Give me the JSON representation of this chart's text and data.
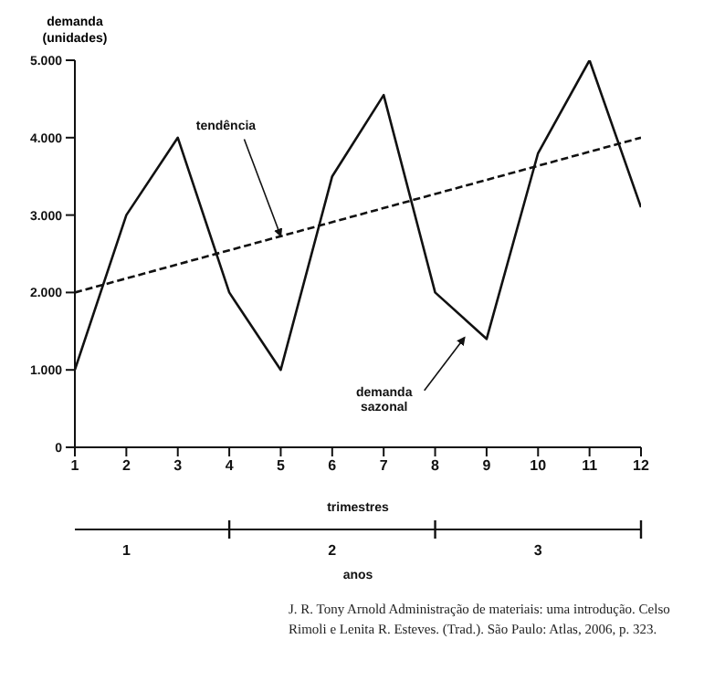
{
  "chart_data": {
    "type": "line",
    "ylabel": "demanda (unidades)",
    "xlabel": "trimestres",
    "x2label": "anos",
    "x": [
      1,
      2,
      3,
      4,
      5,
      6,
      7,
      8,
      9,
      10,
      11,
      12
    ],
    "series": [
      {
        "name": "demanda sazonal",
        "color": "#111111",
        "values": [
          1000,
          3000,
          4000,
          2000,
          1000,
          3500,
          4550,
          2000,
          1400,
          3800,
          5000,
          3100
        ],
        "line_style": "solid"
      },
      {
        "color": "#111111",
        "x": [
          1,
          12
        ],
        "values": [
          2000,
          4000
        ],
        "line_style": "dashed"
      }
    ],
    "xlim": [
      1,
      12
    ],
    "xticks": [
      1,
      2,
      3,
      4,
      5,
      6,
      7,
      8,
      9,
      10,
      11,
      12
    ],
    "x2lim": [
      0.75,
      3.5
    ],
    "x2ticks": [
      1,
      2,
      3,
      {
        "value": 1.5,
        "label": null
      },
      {
        "value": 2.5,
        "label": null
      },
      {
        "value": 3.5,
        "label": null
      }
    ],
    "ylim": [
      0,
      5000
    ],
    "yticks": [
      {
        "value": 0,
        "label": "0"
      },
      {
        "value": 1000,
        "label": "1.000"
      },
      {
        "value": 2000,
        "label": "2.000"
      },
      {
        "value": 3000,
        "label": "3.000"
      },
      {
        "value": 4000,
        "label": "4.000"
      },
      {
        "value": 5000,
        "label": "5.000"
      }
    ],
    "grid": false,
    "legend": false,
    "marker": "none",
    "annotations": [
      {
        "text": "tendência",
        "x": 5,
        "y": 2730
      },
      "J. R. Tony Arnold Administração de materiais: uma introdução. Celso Rimoli e Lenita R. Esteves. (Trad.). São Paulo: Atlas, 2006, p. 323."
    ]
  }
}
